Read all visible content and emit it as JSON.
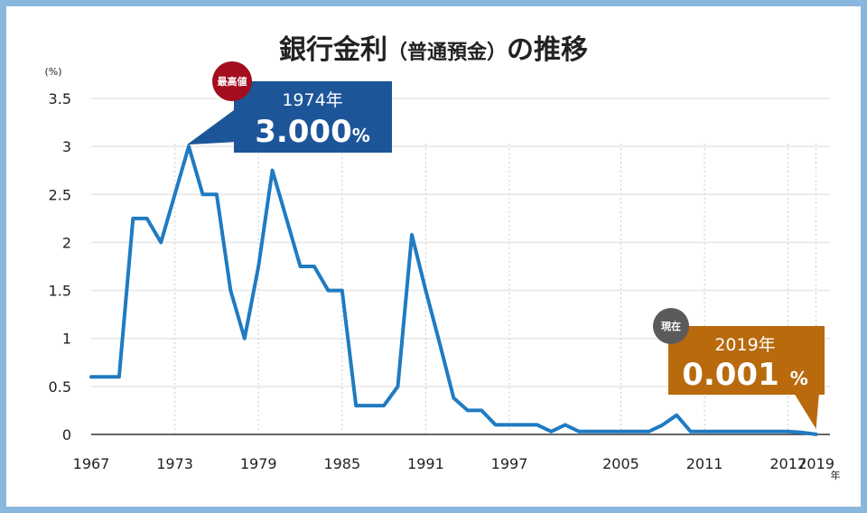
{
  "title": {
    "main": "銀行金利",
    "paren": "（普通預金）",
    "suffix": "の推移"
  },
  "chart_data": {
    "type": "line",
    "y_unit": "(%)",
    "x_unit": "年",
    "ylim": [
      0,
      3.5
    ],
    "y_ticks": [
      "0",
      "0.5",
      "1",
      "1.5",
      "2",
      "2.5",
      "3",
      "3.5"
    ],
    "x_ticks": [
      "1967",
      "1973",
      "1979",
      "1985",
      "1991",
      "1997",
      "2005",
      "2011",
      "2017",
      "2019"
    ],
    "grid": true,
    "series": [
      {
        "color": "#1f7bc2",
        "points": [
          [
            1967,
            0.6
          ],
          [
            1968,
            0.6
          ],
          [
            1969,
            0.6
          ],
          [
            1970,
            2.25
          ],
          [
            1971,
            2.25
          ],
          [
            1972,
            2.0
          ],
          [
            1973,
            2.5
          ],
          [
            1974,
            3.0
          ],
          [
            1975,
            2.5
          ],
          [
            1976,
            2.5
          ],
          [
            1977,
            1.5
          ],
          [
            1978,
            1.0
          ],
          [
            1979,
            1.75
          ],
          [
            1980,
            2.75
          ],
          [
            1981,
            2.25
          ],
          [
            1982,
            1.75
          ],
          [
            1983,
            1.75
          ],
          [
            1984,
            1.5
          ],
          [
            1985,
            1.5
          ],
          [
            1986,
            0.3
          ],
          [
            1987,
            0.3
          ],
          [
            1988,
            0.3
          ],
          [
            1989,
            0.5
          ],
          [
            1990,
            2.08
          ],
          [
            1991,
            1.5
          ],
          [
            1992,
            0.95
          ],
          [
            1993,
            0.38
          ],
          [
            1994,
            0.25
          ],
          [
            1995,
            0.25
          ],
          [
            1996,
            0.1
          ],
          [
            1997,
            0.1
          ],
          [
            1998,
            0.1
          ],
          [
            1999,
            0.1
          ],
          [
            2000,
            0.03
          ],
          [
            2001,
            0.1
          ],
          [
            2002,
            0.03
          ],
          [
            2003,
            0.03
          ],
          [
            2004,
            0.03
          ],
          [
            2005,
            0.03
          ],
          [
            2006,
            0.03
          ],
          [
            2007,
            0.03
          ],
          [
            2008,
            0.1
          ],
          [
            2009,
            0.2
          ],
          [
            2010,
            0.03
          ],
          [
            2011,
            0.03
          ],
          [
            2012,
            0.03
          ],
          [
            2013,
            0.03
          ],
          [
            2014,
            0.03
          ],
          [
            2015,
            0.03
          ],
          [
            2016,
            0.03
          ],
          [
            2017,
            0.03
          ],
          [
            2018,
            0.02
          ],
          [
            2019,
            0.001
          ]
        ]
      }
    ],
    "annotations": [
      {
        "badge": "最高値",
        "year": "1974年",
        "value": "3.000",
        "unit": "%",
        "color": "#1d5698",
        "badge_color": "#a30d1e",
        "point": [
          1974,
          3.0
        ]
      },
      {
        "badge": "現在",
        "year": "2019年",
        "value": "0.001",
        "unit": "%",
        "color": "#b86a0d",
        "badge_color": "#5a5a5a",
        "point": [
          2019,
          0.001
        ]
      }
    ]
  }
}
